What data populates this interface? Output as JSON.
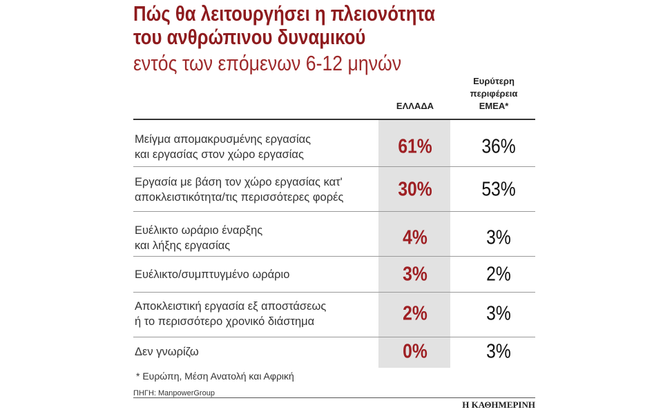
{
  "header": {
    "title": [
      "Πώς θα λειτουργήσει η πλειονότητα",
      "του ανθρώπινου δυναμικού"
    ],
    "subtitle": "εντός των επόμενων 6-12 μηνών"
  },
  "table": {
    "columns": [
      [
        "ΕΛΛΑΔΑ"
      ],
      [
        "Ευρύτερη",
        "περιφέρεια",
        "ΕΜΕΑ*"
      ]
    ],
    "rows": [
      {
        "label": [
          "Μείγμα απομακρυσμένης εργασίας",
          "και εργασίας στον χώρο εργασίας"
        ],
        "greece": "61%",
        "emea": "36%"
      },
      {
        "label": [
          "Εργασία με βάση τον χώρο εργασίας κατ'",
          "αποκλειστικότητα/τις περισσότερες φορές"
        ],
        "greece": "30%",
        "emea": "53%"
      },
      {
        "label": [
          "Ευέλικτο ωράριο έναρξης",
          "και λήξης εργασίας"
        ],
        "greece": "4%",
        "emea": "3%"
      },
      {
        "label": [
          "Ευέλικτο/συμπτυγμένο ωράριο"
        ],
        "greece": "3%",
        "emea": "2%"
      },
      {
        "label": [
          "Αποκλειστική εργασία εξ αποστάσεως",
          "ή το περισσότερο χρονικό διάστημα"
        ],
        "greece": "2%",
        "emea": "3%"
      },
      {
        "label": [
          "Δεν γνωρίζω"
        ],
        "greece": "0%",
        "emea": "3%"
      }
    ]
  },
  "footer": {
    "note": "* Ευρώπη, Μέση Ανατολή και Αφρική",
    "source": "ΠΗΓΗ: ManpowerGroup",
    "brand": "Η ΚΑΘΗΜΕΡΙΝΗ"
  }
}
